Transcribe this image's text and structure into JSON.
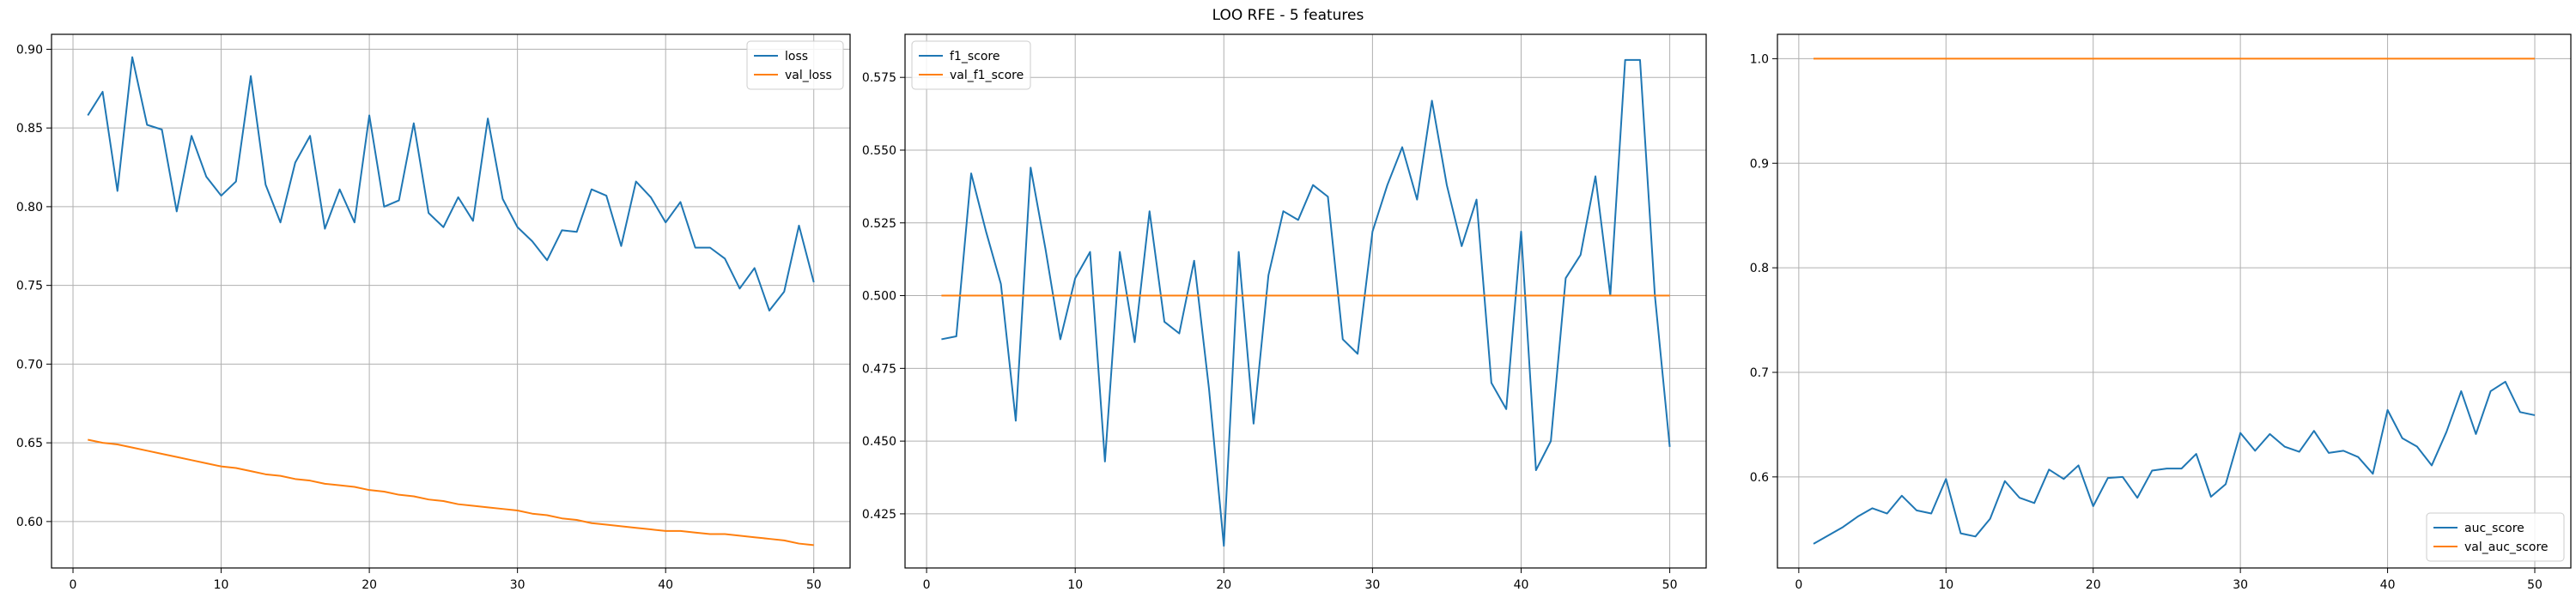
{
  "figure": {
    "title": "LOO RFE - 5 features"
  },
  "colors": {
    "series1": "#1f77b4",
    "series2": "#ff7f0e",
    "grid": "#b0b0b0",
    "axis": "#000000"
  },
  "chart_data": [
    {
      "type": "line",
      "title": "",
      "xlabel": "",
      "ylabel": "",
      "xlim": [
        -1.45,
        52.45
      ],
      "ylim": [
        0.5705,
        0.9095
      ],
      "xticks": [
        0,
        10,
        20,
        30,
        40,
        50
      ],
      "yticks": [
        0.6,
        0.65,
        0.7,
        0.75,
        0.8,
        0.85,
        0.9
      ],
      "ytick_labels": [
        "0.60",
        "0.65",
        "0.70",
        "0.75",
        "0.80",
        "0.85",
        "0.90"
      ],
      "grid": true,
      "legend_position": "upper right",
      "x": [
        1,
        2,
        3,
        4,
        5,
        6,
        7,
        8,
        9,
        10,
        11,
        12,
        13,
        14,
        15,
        16,
        17,
        18,
        19,
        20,
        21,
        22,
        23,
        24,
        25,
        26,
        27,
        28,
        29,
        30,
        31,
        32,
        33,
        34,
        35,
        36,
        37,
        38,
        39,
        40,
        41,
        42,
        43,
        44,
        45,
        46,
        47,
        48,
        49,
        50
      ],
      "series": [
        {
          "name": "loss",
          "color": "#1f77b4",
          "values": [
            0.858,
            0.873,
            0.81,
            0.895,
            0.852,
            0.849,
            0.797,
            0.845,
            0.819,
            0.807,
            0.816,
            0.883,
            0.814,
            0.79,
            0.828,
            0.845,
            0.786,
            0.811,
            0.79,
            0.858,
            0.8,
            0.804,
            0.853,
            0.796,
            0.787,
            0.806,
            0.791,
            0.856,
            0.805,
            0.787,
            0.778,
            0.766,
            0.785,
            0.784,
            0.811,
            0.807,
            0.775,
            0.816,
            0.806,
            0.79,
            0.803,
            0.774,
            0.774,
            0.767,
            0.748,
            0.761,
            0.734,
            0.746,
            0.788,
            0.752
          ]
        },
        {
          "name": "val_loss",
          "color": "#ff7f0e",
          "values": [
            0.652,
            0.65,
            0.649,
            0.647,
            0.645,
            0.643,
            0.641,
            0.639,
            0.637,
            0.635,
            0.634,
            0.632,
            0.63,
            0.629,
            0.627,
            0.626,
            0.624,
            0.623,
            0.622,
            0.62,
            0.619,
            0.617,
            0.616,
            0.614,
            0.613,
            0.611,
            0.61,
            0.609,
            0.608,
            0.607,
            0.605,
            0.604,
            0.602,
            0.601,
            0.599,
            0.598,
            0.597,
            0.596,
            0.595,
            0.594,
            0.594,
            0.593,
            0.592,
            0.592,
            0.591,
            0.59,
            0.589,
            0.588,
            0.586,
            0.585
          ]
        }
      ]
    },
    {
      "type": "line",
      "title": "",
      "xlabel": "",
      "ylabel": "",
      "xlim": [
        -1.45,
        52.45
      ],
      "ylim": [
        0.4064,
        0.5898
      ],
      "xticks": [
        0,
        10,
        20,
        30,
        40,
        50
      ],
      "yticks": [
        0.425,
        0.45,
        0.475,
        0.5,
        0.525,
        0.55,
        0.575
      ],
      "ytick_labels": [
        "0.425",
        "0.450",
        "0.475",
        "0.500",
        "0.525",
        "0.550",
        "0.575"
      ],
      "grid": true,
      "legend_position": "upper left",
      "x": [
        1,
        2,
        3,
        4,
        5,
        6,
        7,
        8,
        9,
        10,
        11,
        12,
        13,
        14,
        15,
        16,
        17,
        18,
        19,
        20,
        21,
        22,
        23,
        24,
        25,
        26,
        27,
        28,
        29,
        30,
        31,
        32,
        33,
        34,
        35,
        36,
        37,
        38,
        39,
        40,
        41,
        42,
        43,
        44,
        45,
        46,
        47,
        48,
        49,
        50
      ],
      "series": [
        {
          "name": "f1_score",
          "color": "#1f77b4",
          "values": [
            0.485,
            0.486,
            0.542,
            0.522,
            0.504,
            0.457,
            0.544,
            0.516,
            0.485,
            0.506,
            0.515,
            0.443,
            0.515,
            0.484,
            0.529,
            0.491,
            0.487,
            0.512,
            0.468,
            0.414,
            0.515,
            0.456,
            0.507,
            0.529,
            0.526,
            0.538,
            0.534,
            0.485,
            0.48,
            0.522,
            0.538,
            0.551,
            0.533,
            0.567,
            0.538,
            0.517,
            0.533,
            0.47,
            0.461,
            0.522,
            0.44,
            0.45,
            0.506,
            0.514,
            0.541,
            0.5,
            0.581,
            0.581,
            0.5,
            0.448
          ]
        },
        {
          "name": "val_f1_score",
          "color": "#ff7f0e",
          "values": [
            0.5,
            0.5,
            0.5,
            0.5,
            0.5,
            0.5,
            0.5,
            0.5,
            0.5,
            0.5,
            0.5,
            0.5,
            0.5,
            0.5,
            0.5,
            0.5,
            0.5,
            0.5,
            0.5,
            0.5,
            0.5,
            0.5,
            0.5,
            0.5,
            0.5,
            0.5,
            0.5,
            0.5,
            0.5,
            0.5,
            0.5,
            0.5,
            0.5,
            0.5,
            0.5,
            0.5,
            0.5,
            0.5,
            0.5,
            0.5,
            0.5,
            0.5,
            0.5,
            0.5,
            0.5,
            0.5,
            0.5,
            0.5,
            0.5,
            0.5
          ]
        }
      ]
    },
    {
      "type": "line",
      "title": "",
      "xlabel": "",
      "ylabel": "",
      "xlim": [
        -1.45,
        52.45
      ],
      "ylim": [
        0.5129,
        1.0233
      ],
      "xticks": [
        0,
        10,
        20,
        30,
        40,
        50
      ],
      "yticks": [
        0.6,
        0.7,
        0.8,
        0.9,
        1.0
      ],
      "ytick_labels": [
        "0.6",
        "0.7",
        "0.8",
        "0.9",
        "1.0"
      ],
      "grid": true,
      "legend_position": "lower right",
      "x": [
        1,
        2,
        3,
        4,
        5,
        6,
        7,
        8,
        9,
        10,
        11,
        12,
        13,
        14,
        15,
        16,
        17,
        18,
        19,
        20,
        21,
        22,
        23,
        24,
        25,
        26,
        27,
        28,
        29,
        30,
        31,
        32,
        33,
        34,
        35,
        36,
        37,
        38,
        39,
        40,
        41,
        42,
        43,
        44,
        45,
        46,
        47,
        48,
        49,
        50
      ],
      "series": [
        {
          "name": "auc_score",
          "color": "#1f77b4",
          "values": [
            0.536,
            0.544,
            0.552,
            0.562,
            0.57,
            0.565,
            0.582,
            0.568,
            0.565,
            0.598,
            0.546,
            0.543,
            0.56,
            0.596,
            0.58,
            0.575,
            0.607,
            0.598,
            0.611,
            0.572,
            0.599,
            0.6,
            0.58,
            0.606,
            0.608,
            0.608,
            0.622,
            0.581,
            0.593,
            0.642,
            0.625,
            0.641,
            0.629,
            0.624,
            0.644,
            0.623,
            0.625,
            0.619,
            0.603,
            0.664,
            0.637,
            0.629,
            0.611,
            0.643,
            0.682,
            0.641,
            0.682,
            0.691,
            0.662,
            0.659
          ]
        },
        {
          "name": "val_auc_score",
          "color": "#ff7f0e",
          "values": [
            1.0,
            1.0,
            1.0,
            1.0,
            1.0,
            1.0,
            1.0,
            1.0,
            1.0,
            1.0,
            1.0,
            1.0,
            1.0,
            1.0,
            1.0,
            1.0,
            1.0,
            1.0,
            1.0,
            1.0,
            1.0,
            1.0,
            1.0,
            1.0,
            1.0,
            1.0,
            1.0,
            1.0,
            1.0,
            1.0,
            1.0,
            1.0,
            1.0,
            1.0,
            1.0,
            1.0,
            1.0,
            1.0,
            1.0,
            1.0,
            1.0,
            1.0,
            1.0,
            1.0,
            1.0,
            1.0,
            1.0,
            1.0,
            1.0,
            1.0
          ]
        }
      ]
    }
  ]
}
